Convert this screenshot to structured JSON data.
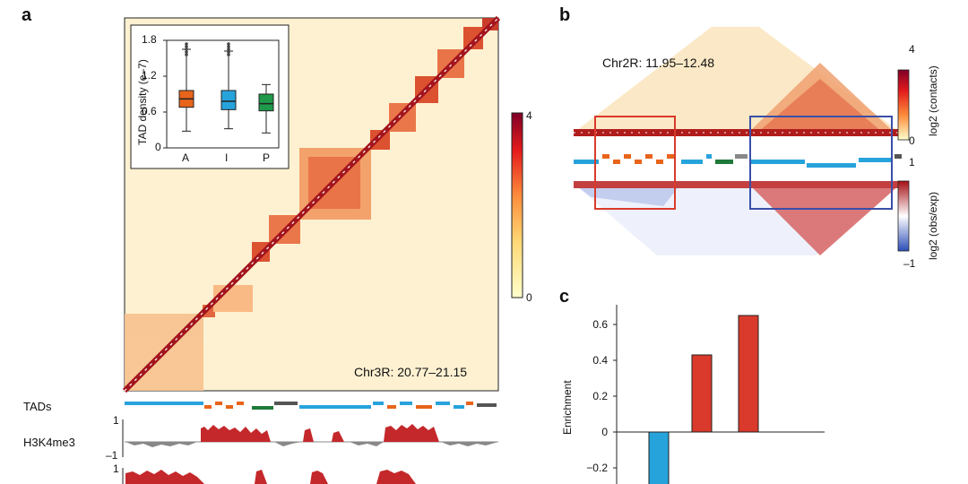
{
  "panels": {
    "a": {
      "letter": "a",
      "region_label": "Chr3R: 20.77–21.15",
      "colorbar": {
        "max_label": "4",
        "min_label": "0"
      },
      "inset": {
        "ylabel": "TAD density (e–7)",
        "yticks": [
          "1.8",
          "1.2",
          "0.6",
          "0"
        ],
        "categories": [
          "A",
          "I",
          "P"
        ],
        "colors": [
          "#e8641b",
          "#27a3dc",
          "#1e9a4a"
        ]
      },
      "tracks": {
        "tads_label": "TADs",
        "h3k4me3_label": "H3K4me3",
        "h3k4me3_ticks": [
          "1",
          "–1"
        ],
        "track2_tick": "1"
      }
    },
    "b": {
      "letter": "b",
      "region_label": "Chr2R: 11.95–12.48",
      "colorbar_top": {
        "label": "log2 (contacts)",
        "max_label": "4",
        "min_label": "0"
      },
      "colorbar_bottom": {
        "label": "log2 (obs/exp)",
        "max_label": "1",
        "min_label": "–1"
      }
    },
    "c": {
      "letter": "c"
    }
  },
  "chart_data": [
    {
      "type": "box",
      "panel": "a-inset",
      "categories": [
        "A",
        "I",
        "P"
      ],
      "ylabel": "TAD density (e–7)",
      "ylim": [
        0,
        1.8
      ],
      "boxes": [
        {
          "category": "A",
          "whisker_low": 0.28,
          "q1": 0.68,
          "median": 0.82,
          "q3": 0.96,
          "whisker_high": 1.65
        },
        {
          "category": "I",
          "whisker_low": 0.32,
          "q1": 0.64,
          "median": 0.78,
          "q3": 0.96,
          "whisker_high": 1.62
        },
        {
          "category": "P",
          "whisker_low": 0.25,
          "q1": 0.62,
          "median": 0.74,
          "q3": 0.9,
          "whisker_high": 1.06
        }
      ],
      "colors": [
        "#e8641b",
        "#27a3dc",
        "#1e9a4a"
      ]
    },
    {
      "type": "bar",
      "panel": "c",
      "ylabel": "Enrichment",
      "yticks": [
        -0.2,
        0,
        0.2,
        0.4,
        0.6
      ],
      "ylim": [
        -0.3,
        0.7
      ],
      "categories": [
        "",
        "",
        ""
      ],
      "values": [
        -0.3,
        0.43,
        0.65
      ],
      "colors": [
        "#27a3dc",
        "#d93a2b",
        "#d93a2b"
      ]
    }
  ]
}
